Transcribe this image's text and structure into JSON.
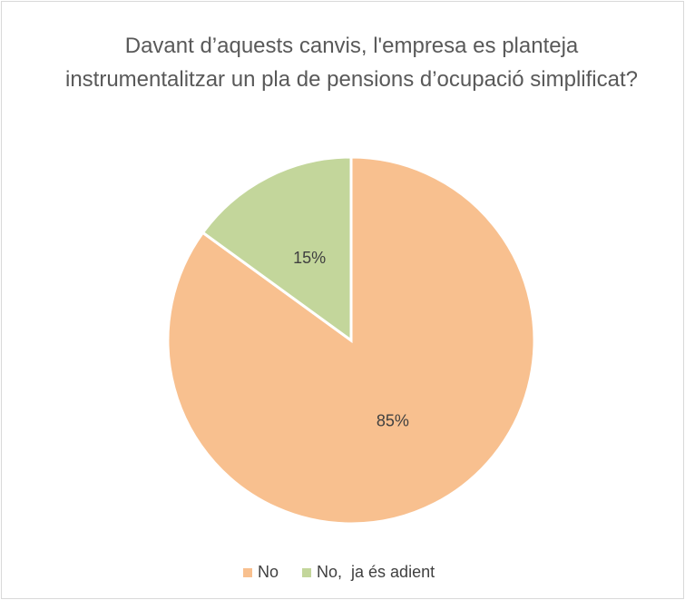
{
  "chart_data": {
    "type": "pie",
    "title": "Davant d’aquests canvis, l'empresa es planteja instrumentalitzar un pla de pensions d’ocupació simplificat?",
    "categories": [
      "No",
      "No,  ja és adient"
    ],
    "values": [
      85,
      15
    ],
    "value_labels": [
      "85%",
      "15%"
    ],
    "colors": [
      "#f8c08f",
      "#c3d69b"
    ],
    "legend": "bottom"
  }
}
